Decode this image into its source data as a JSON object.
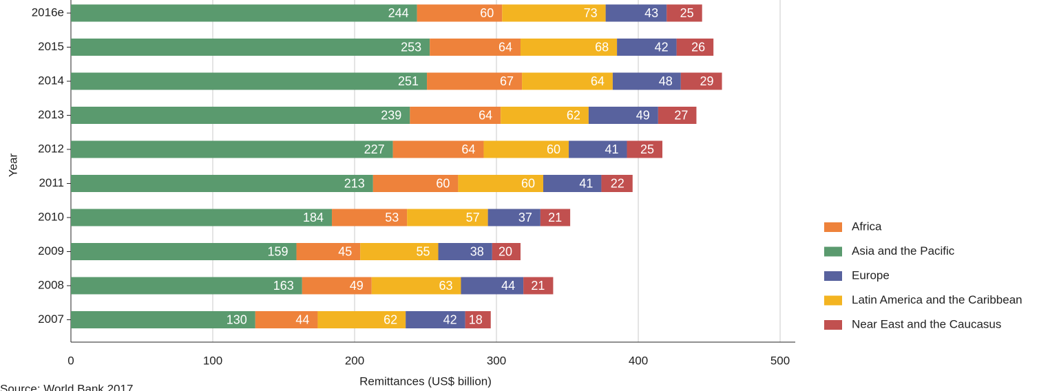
{
  "chart_data": {
    "type": "stacked-barh",
    "x_label": "Remittances (US$ billion)",
    "y_label": "Year",
    "source": "Source: World Bank 2017",
    "categories": [
      "2016e",
      "2015",
      "2014",
      "2013",
      "2012",
      "2011",
      "2010",
      "2009",
      "2008",
      "2007"
    ],
    "series": [
      {
        "name": "Asia and the Pacific",
        "color": "#5a9a6e",
        "values": [
          244,
          253,
          251,
          239,
          227,
          213,
          184,
          159,
          163,
          130
        ]
      },
      {
        "name": "Africa",
        "color": "#ee823b",
        "values": [
          60,
          64,
          67,
          64,
          64,
          60,
          53,
          45,
          49,
          44
        ]
      },
      {
        "name": "Latin America and the Caribbean",
        "color": "#f3b421",
        "values": [
          73,
          68,
          64,
          62,
          60,
          60,
          57,
          55,
          63,
          62
        ]
      },
      {
        "name": "Europe",
        "color": "#58629e",
        "values": [
          43,
          42,
          48,
          49,
          41,
          41,
          37,
          38,
          44,
          42
        ]
      },
      {
        "name": "Near East and the Caucasus",
        "color": "#c1504f",
        "values": [
          25,
          26,
          29,
          27,
          25,
          22,
          21,
          20,
          21,
          18
        ]
      }
    ],
    "xlim": [
      0,
      500
    ],
    "xticks": [
      0,
      100,
      200,
      300,
      400,
      500
    ],
    "grid": true,
    "legend": "right"
  }
}
